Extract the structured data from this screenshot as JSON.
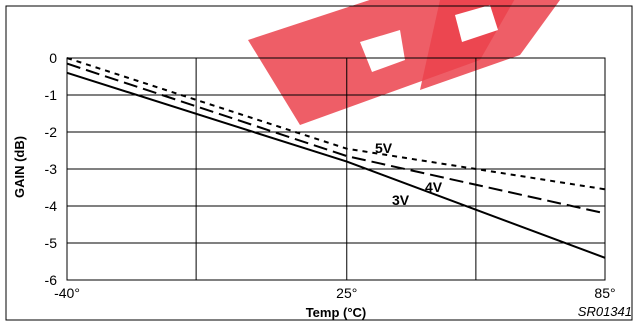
{
  "chart_data": {
    "type": "line",
    "title": "",
    "xlabel": "Temp (°C)",
    "ylabel": "GAIN (dB)",
    "xlim": [
      -40,
      85
    ],
    "ylim": [
      -6,
      0
    ],
    "x_ticks": [
      -40,
      25,
      85
    ],
    "x_tick_labels": [
      "-40°",
      "25°",
      "85°"
    ],
    "x_grid": [
      -40,
      -10,
      25,
      55,
      85
    ],
    "y_ticks": [
      0,
      -1,
      -2,
      -3,
      -4,
      -5,
      -6
    ],
    "y_tick_labels": [
      "0",
      "-1",
      "-2",
      "-3",
      "-4",
      "-5",
      "-6"
    ],
    "grid": true,
    "legend": "none",
    "series": [
      {
        "name": "5V",
        "style": "short-dash",
        "x": [
          -40,
          25,
          85
        ],
        "y": [
          0.0,
          -2.45,
          -3.55
        ]
      },
      {
        "name": "4V",
        "style": "long-dash",
        "x": [
          -40,
          25,
          85
        ],
        "y": [
          -0.15,
          -2.65,
          -4.2
        ]
      },
      {
        "name": "3V",
        "style": "solid",
        "x": [
          -40,
          25,
          85
        ],
        "y": [
          -0.4,
          -2.8,
          -5.4
        ]
      }
    ],
    "annotation": "SR01341"
  },
  "colors": {
    "line": "#000000",
    "grid": "#000000",
    "watermark": "#e8212e"
  }
}
